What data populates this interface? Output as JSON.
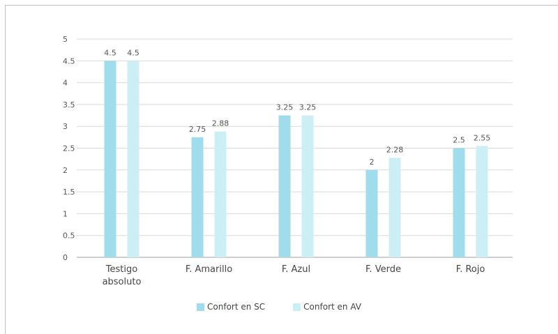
{
  "chart_data": {
    "type": "bar",
    "categories": [
      [
        "Testigo",
        "absoluto"
      ],
      [
        "F. Amarillo"
      ],
      [
        "F. Azul"
      ],
      [
        "F. Verde"
      ],
      [
        "F. Rojo"
      ]
    ],
    "series": [
      {
        "name": "Confort en SC",
        "color": "#9fdcec",
        "values": [
          4.5,
          2.75,
          3.25,
          2,
          2.5
        ],
        "labels": [
          "4.5",
          "2.75",
          "3.25",
          "2",
          "2.5"
        ]
      },
      {
        "name": "Confort en AV",
        "color": "#cbeff5",
        "values": [
          4.5,
          2.88,
          3.25,
          2.28,
          2.55
        ],
        "labels": [
          "4.5",
          "2.88",
          "3.25",
          "2.28",
          "2.55"
        ]
      }
    ],
    "yticks": [
      "0",
      "0.5",
      "1",
      "1.5",
      "2",
      "2.5",
      "3",
      "3.5",
      "4",
      "4.5",
      "5"
    ],
    "ylim": [
      0,
      5
    ],
    "grid": true,
    "legend": "bottom"
  }
}
